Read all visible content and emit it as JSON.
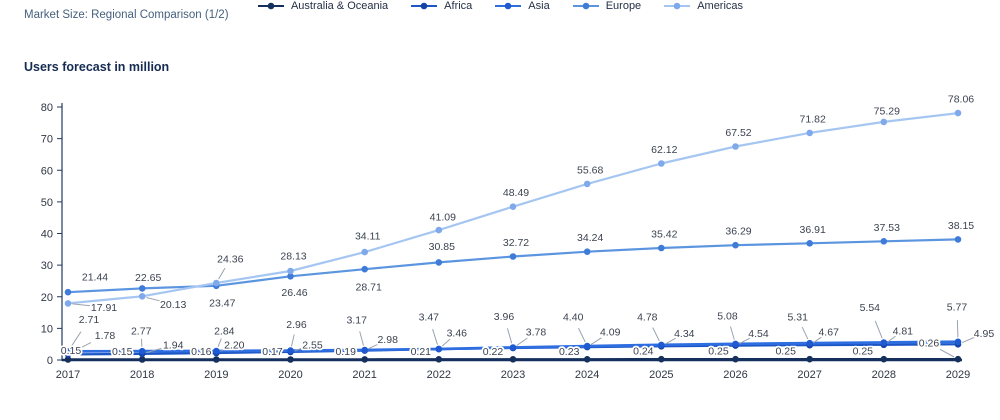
{
  "header": {
    "title": "Market Size: Regional Comparison (1/2)"
  },
  "chart": {
    "subtitle": "Users forecast in million"
  },
  "chart_data": {
    "type": "line",
    "title": "Users forecast in million",
    "xlabel": "",
    "ylabel": "Users forecast in million",
    "x": [
      2017,
      2018,
      2019,
      2020,
      2021,
      2022,
      2023,
      2024,
      2025,
      2026,
      2027,
      2028,
      2029
    ],
    "ylim": [
      0,
      80
    ],
    "yticks": [
      0,
      10,
      20,
      30,
      40,
      50,
      60,
      70,
      80
    ],
    "grid": false,
    "legend_position": "bottom",
    "colors": {
      "axis": "#16305e",
      "leader": "#9aa3ae",
      "label_text": "#3b4350"
    },
    "series": [
      {
        "name": "Australia & Oceania",
        "color": "#16305e",
        "marker_color": "#16305e",
        "line_width": 2.4,
        "values": [
          0.15,
          0.15,
          0.16,
          0.17,
          0.19,
          0.21,
          0.22,
          0.23,
          0.24,
          0.25,
          0.25,
          0.25,
          0.26
        ],
        "label_offsets": [
          [
            3,
            -9,
            0
          ],
          [
            -20,
            -8,
            0
          ],
          [
            -15,
            -8,
            0
          ],
          [
            -18,
            -8,
            0
          ],
          [
            -19,
            -8,
            0
          ],
          [
            -18,
            -8,
            0
          ],
          [
            -20,
            -8,
            0
          ],
          [
            -18,
            -8,
            0
          ],
          [
            -18,
            -8,
            0
          ],
          [
            -17,
            -8,
            0
          ],
          [
            -24,
            -8,
            0
          ],
          [
            -21,
            -8,
            0
          ],
          [
            -29,
            -16,
            1
          ]
        ]
      },
      {
        "name": "Africa",
        "color": "#1c55c4",
        "marker_color": "#1544a8",
        "line_width": 2.2,
        "values": [
          1.78,
          1.94,
          2.2,
          2.55,
          2.98,
          3.46,
          3.78,
          4.09,
          4.34,
          4.54,
          4.67,
          4.81,
          4.95
        ],
        "label_offsets": [
          [
            37,
            -19,
            1
          ],
          [
            31,
            -9,
            1
          ],
          [
            18,
            -8,
            1
          ],
          [
            22,
            -7,
            1
          ],
          [
            23,
            -11,
            1
          ],
          [
            18,
            -16,
            1
          ],
          [
            23,
            -16,
            1
          ],
          [
            23,
            -15,
            1
          ],
          [
            23,
            -13,
            1
          ],
          [
            23,
            -12,
            1
          ],
          [
            19,
            -13,
            1
          ],
          [
            19,
            -14,
            1
          ],
          [
            26,
            -11,
            1
          ]
        ]
      },
      {
        "name": "Asia",
        "color": "#2e6ee0",
        "marker_color": "#1f5ad0",
        "line_width": 2.8,
        "values": [
          2.71,
          2.77,
          2.84,
          2.96,
          3.17,
          3.47,
          3.96,
          4.4,
          4.78,
          5.08,
          5.31,
          5.54,
          5.77
        ],
        "label_offsets": [
          [
            21,
            -32,
            1
          ],
          [
            -1,
            -20,
            1
          ],
          [
            8,
            -20,
            1
          ],
          [
            6,
            -26,
            1
          ],
          [
            -8,
            -30,
            1
          ],
          [
            -10,
            -32,
            1
          ],
          [
            -9,
            -31,
            1
          ],
          [
            -14,
            -29,
            1
          ],
          [
            -14,
            -28,
            1
          ],
          [
            -8,
            -28,
            1
          ],
          [
            -12,
            -26,
            1
          ],
          [
            -14,
            -35,
            1
          ],
          [
            -1,
            -35,
            1
          ]
        ]
      },
      {
        "name": "Europe",
        "color": "#5b95e0",
        "marker_color": "#3f7cd8",
        "line_width": 2.2,
        "values": [
          21.44,
          22.65,
          23.47,
          26.46,
          28.71,
          30.85,
          32.72,
          34.24,
          35.42,
          36.29,
          36.91,
          37.53,
          38.15
        ],
        "label_offsets": [
          [
            27,
            -15,
            0
          ],
          [
            6,
            -11,
            0
          ],
          [
            6,
            17,
            0
          ],
          [
            4,
            16,
            0
          ],
          [
            4,
            18,
            0
          ],
          [
            3,
            -16,
            0
          ],
          [
            3,
            -14,
            0
          ],
          [
            3,
            -14,
            0
          ],
          [
            3,
            -14,
            0
          ],
          [
            3,
            -14,
            0
          ],
          [
            3,
            -14,
            0
          ],
          [
            3,
            -14,
            0
          ],
          [
            3,
            -14,
            0
          ]
        ]
      },
      {
        "name": "Americas",
        "color": "#a6c6f2",
        "marker_color": "#7fa9ea",
        "line_width": 2.2,
        "values": [
          17.91,
          20.13,
          24.36,
          28.13,
          34.11,
          41.09,
          48.49,
          55.68,
          62.12,
          67.52,
          71.82,
          75.29,
          78.06
        ],
        "label_offsets": [
          [
            36,
            4,
            1
          ],
          [
            31,
            8,
            1
          ],
          [
            14,
            -24,
            1
          ],
          [
            3,
            -15,
            0
          ],
          [
            3,
            -16,
            0
          ],
          [
            4,
            -13,
            0
          ],
          [
            3,
            -14,
            0
          ],
          [
            3,
            -14,
            0
          ],
          [
            3,
            -14,
            0
          ],
          [
            3,
            -14,
            0
          ],
          [
            3,
            -14,
            0
          ],
          [
            3,
            -11,
            0
          ],
          [
            3,
            -14,
            0
          ]
        ]
      }
    ]
  }
}
